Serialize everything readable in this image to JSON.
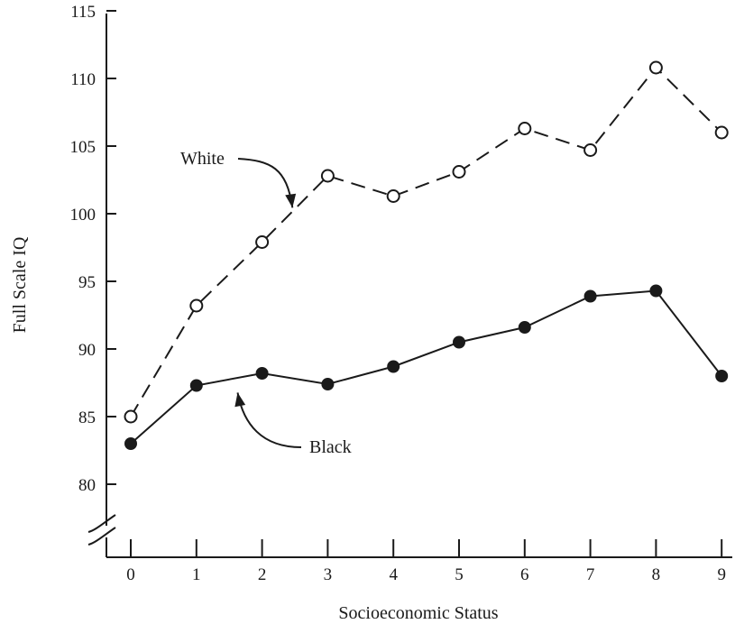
{
  "chart_data": {
    "type": "line",
    "title": "",
    "xlabel": "Socioeconomic Status",
    "ylabel": "Full Scale IQ",
    "x": [
      0,
      1,
      2,
      3,
      4,
      5,
      6,
      7,
      8,
      9
    ],
    "x_ticks": [
      "0",
      "1",
      "2",
      "3",
      "4",
      "5",
      "6",
      "7",
      "8",
      "9"
    ],
    "y_ticks": [
      "80",
      "85",
      "90",
      "95",
      "100",
      "105",
      "110",
      "115"
    ],
    "xlim": [
      0,
      9
    ],
    "ylim": [
      80,
      115
    ],
    "y_axis_break": true,
    "grid": false,
    "legend": "none",
    "series": [
      {
        "name": "White",
        "line_style": "dashed",
        "marker": "open-circle",
        "values": [
          85.0,
          93.2,
          97.9,
          102.8,
          101.3,
          103.1,
          106.3,
          104.7,
          110.8,
          106.0
        ]
      },
      {
        "name": "Black",
        "line_style": "solid",
        "marker": "filled-circle",
        "values": [
          83.0,
          87.3,
          88.2,
          87.4,
          88.7,
          90.5,
          91.6,
          93.9,
          94.3,
          88.0
        ]
      }
    ],
    "annotations": [
      {
        "text": "White",
        "series": "White",
        "points_to_x": 2.6
      },
      {
        "text": "Black",
        "series": "Black",
        "points_to_x": 1.6
      }
    ],
    "colors": {
      "ink": "#1a1a1a",
      "background": "#ffffff"
    }
  }
}
